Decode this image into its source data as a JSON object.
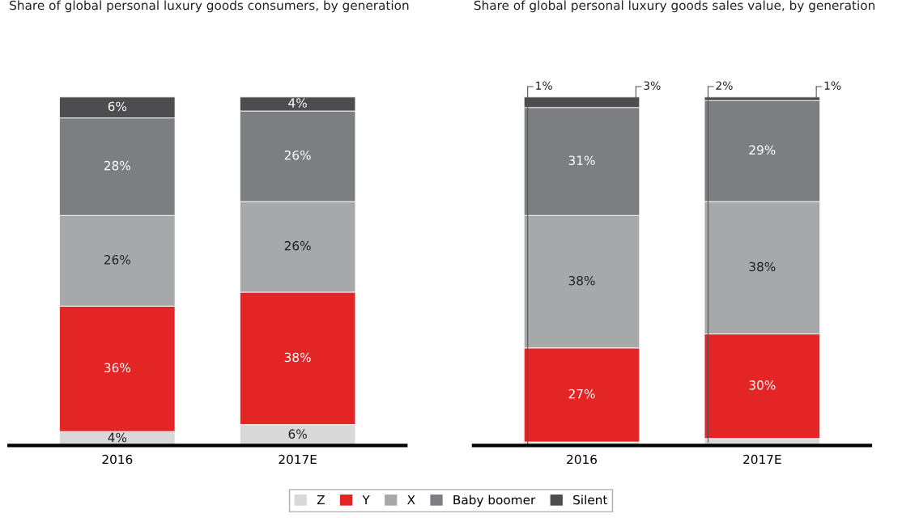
{
  "chart_data": [
    {
      "type": "bar",
      "stacked": true,
      "title": "Share of global personal luxury goods consumers, by generation",
      "categories": [
        "2016",
        "2017E"
      ],
      "tick_labels": "x",
      "legend": "bottom",
      "grid": false,
      "series": [
        {
          "name": "Z",
          "color": "#d9d9d9",
          "values": [
            4,
            6
          ],
          "value_labels": [
            "4%",
            "6%"
          ]
        },
        {
          "name": "Y",
          "color": "#e32526",
          "values": [
            36,
            38
          ],
          "value_labels": [
            "36%",
            "38%"
          ]
        },
        {
          "name": "X",
          "color": "#a7a8aa",
          "values": [
            26,
            26
          ],
          "value_labels": [
            "26%",
            "26%"
          ]
        },
        {
          "name": "Baby boomer",
          "color": "#7d7e81",
          "values": [
            28,
            26
          ],
          "value_labels": [
            "28%",
            "26%"
          ]
        },
        {
          "name": "Silent",
          "color": "#4d4d4f",
          "values": [
            6,
            4
          ],
          "value_labels": [
            "6%",
            "4%"
          ]
        }
      ]
    },
    {
      "type": "bar",
      "stacked": true,
      "title": "Share of global personal luxury goods sales value, by generation",
      "categories": [
        "2016",
        "2017E"
      ],
      "tick_labels": "x",
      "grid": false,
      "series": [
        {
          "color": "#d9d9d9",
          "values": [
            1,
            2
          ],
          "value_labels": [
            "1%",
            "2%"
          ]
        },
        {
          "color": "#e32526",
          "values": [
            27,
            30
          ],
          "value_labels": [
            "27%",
            "30%"
          ]
        },
        {
          "color": "#a7a8aa",
          "values": [
            38,
            38
          ],
          "value_labels": [
            "38%",
            "38%"
          ]
        },
        {
          "color": "#7d7e81",
          "values": [
            31,
            29
          ],
          "value_labels": [
            "31%",
            "29%"
          ]
        },
        {
          "color": "#4d4d4f",
          "values": [
            3,
            1
          ],
          "value_labels": [
            "3%",
            "1%"
          ]
        }
      ]
    }
  ]
}
